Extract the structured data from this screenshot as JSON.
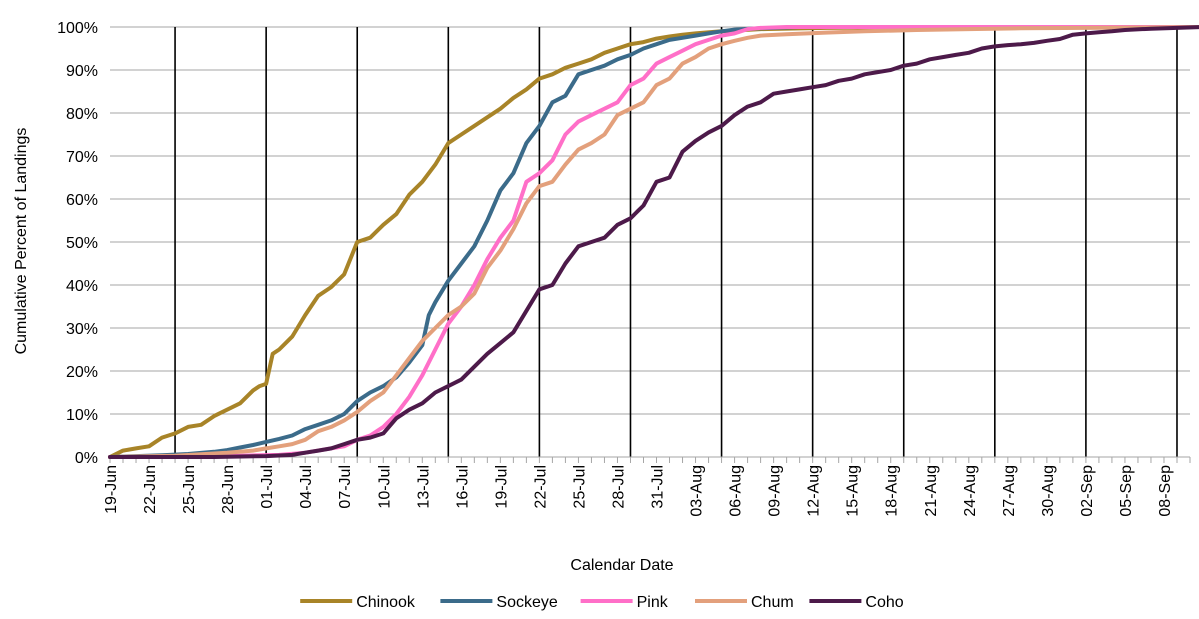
{
  "chart_data": {
    "type": "line",
    "xlabel": "Calendar Date",
    "ylabel": "Cumulative Percent of Landings",
    "ylim": [
      0,
      100
    ],
    "x_range_days": [
      0,
      83
    ],
    "y_ticks": [
      "0%",
      "10%",
      "20%",
      "30%",
      "40%",
      "50%",
      "60%",
      "70%",
      "80%",
      "90%",
      "100%"
    ],
    "x_ticks": [
      {
        "day": 0,
        "label": "19-Jun"
      },
      {
        "day": 3,
        "label": "22-Jun"
      },
      {
        "day": 6,
        "label": "25-Jun"
      },
      {
        "day": 9,
        "label": "28-Jun"
      },
      {
        "day": 12,
        "label": "01-Jul"
      },
      {
        "day": 15,
        "label": "04-Jul"
      },
      {
        "day": 18,
        "label": "07-Jul"
      },
      {
        "day": 21,
        "label": "10-Jul"
      },
      {
        "day": 24,
        "label": "13-Jul"
      },
      {
        "day": 27,
        "label": "16-Jul"
      },
      {
        "day": 30,
        "label": "19-Jul"
      },
      {
        "day": 33,
        "label": "22-Jul"
      },
      {
        "day": 36,
        "label": "25-Jul"
      },
      {
        "day": 39,
        "label": "28-Jul"
      },
      {
        "day": 42,
        "label": "31-Jul"
      },
      {
        "day": 45,
        "label": "03-Aug"
      },
      {
        "day": 48,
        "label": "06-Aug"
      },
      {
        "day": 51,
        "label": "09-Aug"
      },
      {
        "day": 54,
        "label": "12-Aug"
      },
      {
        "day": 57,
        "label": "15-Aug"
      },
      {
        "day": 60,
        "label": "18-Aug"
      },
      {
        "day": 63,
        "label": "21-Aug"
      },
      {
        "day": 66,
        "label": "24-Aug"
      },
      {
        "day": 69,
        "label": "27-Aug"
      },
      {
        "day": 72,
        "label": "30-Aug"
      },
      {
        "day": 75,
        "label": "02-Sep"
      },
      {
        "day": 78,
        "label": "05-Sep"
      },
      {
        "day": 81,
        "label": "08-Sep"
      }
    ],
    "weekly_lines_days": [
      5,
      12,
      19,
      26,
      33,
      40,
      47,
      54,
      61,
      68,
      75,
      82
    ],
    "grid": true,
    "legend": "bottom",
    "series": [
      {
        "name": "Chinook",
        "color": "#A88428",
        "points": [
          [
            0,
            0
          ],
          [
            1,
            1.5
          ],
          [
            2,
            2
          ],
          [
            3,
            2.5
          ],
          [
            4,
            4.5
          ],
          [
            5,
            5.5
          ],
          [
            6,
            7
          ],
          [
            7,
            7.5
          ],
          [
            8,
            9.5
          ],
          [
            9,
            11
          ],
          [
            10,
            12.5
          ],
          [
            11,
            15.5
          ],
          [
            11.5,
            16.5
          ],
          [
            12,
            17
          ],
          [
            12.5,
            24
          ],
          [
            13,
            25
          ],
          [
            14,
            28
          ],
          [
            15,
            33
          ],
          [
            16,
            37.5
          ],
          [
            17,
            39.5
          ],
          [
            18,
            42.5
          ],
          [
            19,
            50
          ],
          [
            20,
            51
          ],
          [
            21,
            54
          ],
          [
            22,
            56.5
          ],
          [
            23,
            61
          ],
          [
            24,
            64
          ],
          [
            25,
            68
          ],
          [
            26,
            73
          ],
          [
            27,
            75
          ],
          [
            28,
            77
          ],
          [
            29,
            79
          ],
          [
            30,
            81
          ],
          [
            31,
            83.5
          ],
          [
            32,
            85.5
          ],
          [
            33,
            88
          ],
          [
            34,
            89
          ],
          [
            35,
            90.5
          ],
          [
            36,
            91.5
          ],
          [
            37,
            92.5
          ],
          [
            38,
            94
          ],
          [
            39,
            95
          ],
          [
            40,
            96
          ],
          [
            41,
            96.5
          ],
          [
            42,
            97.3
          ],
          [
            43,
            97.8
          ],
          [
            44,
            98.2
          ],
          [
            45,
            98.5
          ],
          [
            47,
            99
          ],
          [
            50,
            99.5
          ],
          [
            55,
            99.8
          ],
          [
            60,
            99.9
          ],
          [
            84,
            100
          ]
        ]
      },
      {
        "name": "Sockeye",
        "color": "#3B6B8A",
        "points": [
          [
            0,
            0
          ],
          [
            2,
            0.2
          ],
          [
            4,
            0.4
          ],
          [
            6,
            0.7
          ],
          [
            8,
            1.2
          ],
          [
            9,
            1.6
          ],
          [
            10,
            2.2
          ],
          [
            11,
            2.8
          ],
          [
            12,
            3.5
          ],
          [
            13,
            4.2
          ],
          [
            14,
            5
          ],
          [
            15,
            6.5
          ],
          [
            16,
            7.5
          ],
          [
            17,
            8.5
          ],
          [
            18,
            10
          ],
          [
            19,
            13
          ],
          [
            20,
            15
          ],
          [
            21,
            16.5
          ],
          [
            22,
            18.5
          ],
          [
            23,
            22
          ],
          [
            24,
            26
          ],
          [
            24.5,
            33
          ],
          [
            25,
            36
          ],
          [
            26,
            41
          ],
          [
            27,
            45
          ],
          [
            28,
            49
          ],
          [
            29,
            55
          ],
          [
            30,
            62
          ],
          [
            31,
            66
          ],
          [
            32,
            73
          ],
          [
            33,
            77
          ],
          [
            34,
            82.5
          ],
          [
            35,
            84
          ],
          [
            36,
            89
          ],
          [
            37,
            90
          ],
          [
            38,
            91
          ],
          [
            39,
            92.5
          ],
          [
            40,
            93.5
          ],
          [
            41,
            95
          ],
          [
            42,
            96
          ],
          [
            43,
            97
          ],
          [
            44,
            97.5
          ],
          [
            45,
            98
          ],
          [
            46,
            98.5
          ],
          [
            47,
            99
          ],
          [
            48,
            99.4
          ],
          [
            50,
            99.7
          ],
          [
            53,
            100
          ],
          [
            84,
            100
          ]
        ]
      },
      {
        "name": "Pink",
        "color": "#FF6FC8",
        "points": [
          [
            0,
            0
          ],
          [
            5,
            0
          ],
          [
            10,
            0.3
          ],
          [
            13,
            0.5
          ],
          [
            15,
            1
          ],
          [
            17,
            2
          ],
          [
            18,
            2.5
          ],
          [
            19,
            4
          ],
          [
            20,
            5
          ],
          [
            21,
            7
          ],
          [
            22,
            10
          ],
          [
            23,
            14
          ],
          [
            24,
            19
          ],
          [
            25,
            25
          ],
          [
            26,
            31
          ],
          [
            27,
            35
          ],
          [
            28,
            40
          ],
          [
            29,
            46
          ],
          [
            30,
            51
          ],
          [
            31,
            55
          ],
          [
            32,
            64
          ],
          [
            33,
            66
          ],
          [
            34,
            69
          ],
          [
            35,
            75
          ],
          [
            36,
            78
          ],
          [
            37,
            79.5
          ],
          [
            38,
            81
          ],
          [
            39,
            82.5
          ],
          [
            40,
            86.5
          ],
          [
            41,
            88
          ],
          [
            42,
            91.5
          ],
          [
            43,
            93
          ],
          [
            44,
            94.5
          ],
          [
            45,
            96
          ],
          [
            46,
            97
          ],
          [
            47,
            98
          ],
          [
            48,
            98.5
          ],
          [
            49,
            99.5
          ],
          [
            50,
            99.8
          ],
          [
            52,
            100
          ],
          [
            84,
            100
          ]
        ]
      },
      {
        "name": "Chum",
        "color": "#E3A07C",
        "points": [
          [
            0,
            0
          ],
          [
            5,
            0.3
          ],
          [
            9,
            1
          ],
          [
            11,
            1.5
          ],
          [
            12,
            2
          ],
          [
            13,
            2.5
          ],
          [
            14,
            3
          ],
          [
            15,
            4
          ],
          [
            16,
            6
          ],
          [
            17,
            7
          ],
          [
            18,
            8.5
          ],
          [
            19,
            10.5
          ],
          [
            20,
            13
          ],
          [
            21,
            15
          ],
          [
            22,
            19
          ],
          [
            23,
            23
          ],
          [
            24,
            27
          ],
          [
            25,
            30
          ],
          [
            26,
            33
          ],
          [
            27,
            35
          ],
          [
            28,
            38
          ],
          [
            29,
            44
          ],
          [
            30,
            48
          ],
          [
            31,
            53
          ],
          [
            32,
            59
          ],
          [
            33,
            63
          ],
          [
            34,
            64
          ],
          [
            35,
            68
          ],
          [
            36,
            71.5
          ],
          [
            37,
            73
          ],
          [
            38,
            75
          ],
          [
            39,
            79.5
          ],
          [
            40,
            81
          ],
          [
            41,
            82.5
          ],
          [
            42,
            86.5
          ],
          [
            43,
            88
          ],
          [
            44,
            91.5
          ],
          [
            45,
            93
          ],
          [
            46,
            95
          ],
          [
            47,
            96
          ],
          [
            48,
            96.8
          ],
          [
            49,
            97.5
          ],
          [
            50,
            98
          ],
          [
            52,
            98.3
          ],
          [
            55,
            98.7
          ],
          [
            58,
            99
          ],
          [
            62,
            99.3
          ],
          [
            66,
            99.5
          ],
          [
            70,
            99.7
          ],
          [
            75,
            99.8
          ],
          [
            84,
            100
          ]
        ]
      },
      {
        "name": "Coho",
        "color": "#4D1A4A",
        "points": [
          [
            0,
            0
          ],
          [
            8,
            0
          ],
          [
            12,
            0.2
          ],
          [
            14,
            0.5
          ],
          [
            15,
            1
          ],
          [
            16,
            1.5
          ],
          [
            17,
            2
          ],
          [
            18,
            3
          ],
          [
            19,
            4
          ],
          [
            20,
            4.5
          ],
          [
            21,
            5.5
          ],
          [
            22,
            9
          ],
          [
            23,
            11
          ],
          [
            24,
            12.5
          ],
          [
            25,
            15
          ],
          [
            26,
            16.5
          ],
          [
            27,
            18
          ],
          [
            28,
            21
          ],
          [
            29,
            24
          ],
          [
            30,
            26.5
          ],
          [
            31,
            29
          ],
          [
            32,
            34
          ],
          [
            33,
            39
          ],
          [
            34,
            40
          ],
          [
            35,
            45
          ],
          [
            36,
            49
          ],
          [
            37,
            50
          ],
          [
            38,
            51
          ],
          [
            39,
            54
          ],
          [
            40,
            55.5
          ],
          [
            41,
            58.5
          ],
          [
            42,
            64
          ],
          [
            43,
            65
          ],
          [
            44,
            71
          ],
          [
            45,
            73.5
          ],
          [
            46,
            75.5
          ],
          [
            47,
            77
          ],
          [
            48,
            79.5
          ],
          [
            49,
            81.5
          ],
          [
            50,
            82.5
          ],
          [
            51,
            84.5
          ],
          [
            52,
            85
          ],
          [
            53,
            85.5
          ],
          [
            54,
            86
          ],
          [
            55,
            86.5
          ],
          [
            56,
            87.5
          ],
          [
            57,
            88
          ],
          [
            58,
            89
          ],
          [
            59,
            89.5
          ],
          [
            60,
            90
          ],
          [
            61,
            91
          ],
          [
            62,
            91.5
          ],
          [
            63,
            92.5
          ],
          [
            64,
            93
          ],
          [
            65,
            93.5
          ],
          [
            66,
            94
          ],
          [
            67,
            95
          ],
          [
            68,
            95.5
          ],
          [
            69,
            95.8
          ],
          [
            70,
            96
          ],
          [
            71,
            96.3
          ],
          [
            72,
            96.8
          ],
          [
            73,
            97.2
          ],
          [
            74,
            98.2
          ],
          [
            75,
            98.5
          ],
          [
            76,
            98.8
          ],
          [
            77,
            99
          ],
          [
            78,
            99.3
          ],
          [
            80,
            99.6
          ],
          [
            84,
            100
          ]
        ]
      }
    ]
  }
}
